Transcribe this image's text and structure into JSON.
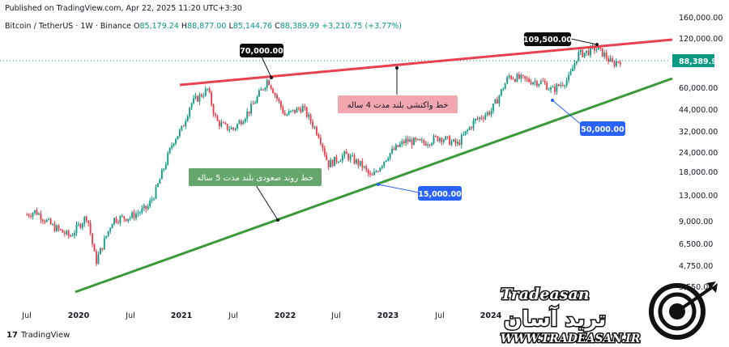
{
  "header": {
    "published": "Published on TradingView.com, Apr 22, 2025 11:20 UTC+3:30"
  },
  "symbol": {
    "name": "Bitcoin / TetherUS · 1W · Binance",
    "o_label": "O",
    "o": "85,179.24",
    "h_label": "H",
    "h": "88,877.00",
    "l_label": "L",
    "l": "85,144.76",
    "c_label": "C",
    "c": "88,389.99",
    "change": "+3,210.75 (+3.77%)"
  },
  "branding": {
    "tradingview": "TradingView"
  },
  "watermark": {
    "latin": "Tradeasan",
    "persian": "ترید آسان",
    "url": "WWW.TRADEASAN.IR"
  },
  "colors": {
    "up": "#089981",
    "down": "#f23645",
    "resistance": "#e8414f",
    "support": "#3a9a3a",
    "callout_dark": "#0b0b0b",
    "callout_blue": "#2962ff"
  },
  "chart_data": {
    "type": "candlestick",
    "symbol": "BTCUSDT",
    "timeframe": "1W",
    "exchange": "Binance",
    "scale": "log",
    "price_axis": [
      "160,000.00",
      "120,000.00",
      "88,389.99",
      "60,000.00",
      "44,000.00",
      "32,000.00",
      "24,000.00",
      "18,000.00",
      "13,000.00",
      "9,000.00",
      "6,500.00",
      "4,750.00",
      "3,550.00"
    ],
    "time_axis": [
      "Jul",
      "2020",
      "Jul",
      "2021",
      "Jul",
      "2022",
      "Jul",
      "2023",
      "Jul",
      "2024"
    ],
    "last_price": "88,389.99",
    "price_points": [
      [
        "2019-07",
        9800
      ],
      [
        "2019-08",
        10300
      ],
      [
        "2019-10",
        8300
      ],
      [
        "2019-12",
        7200
      ],
      [
        "2020-02",
        9700
      ],
      [
        "2020-03",
        5000
      ],
      [
        "2020-05",
        9200
      ],
      [
        "2020-07",
        9500
      ],
      [
        "2020-09",
        10800
      ],
      [
        "2020-10",
        13800
      ],
      [
        "2020-12",
        28000
      ],
      [
        "2021-01",
        33000
      ],
      [
        "2021-02",
        47000
      ],
      [
        "2021-04",
        58000
      ],
      [
        "2021-05",
        37000
      ],
      [
        "2021-06",
        34000
      ],
      [
        "2021-07",
        33000
      ],
      [
        "2021-09",
        44000
      ],
      [
        "2021-11",
        67000
      ],
      [
        "2022-01",
        40000
      ],
      [
        "2022-03",
        45000
      ],
      [
        "2022-05",
        30000
      ],
      [
        "2022-06",
        20000
      ],
      [
        "2022-08",
        23000
      ],
      [
        "2022-10",
        19500
      ],
      [
        "2022-11",
        16500
      ],
      [
        "2023-01",
        23000
      ],
      [
        "2023-03",
        28000
      ],
      [
        "2023-05",
        27000
      ],
      [
        "2023-07",
        29500
      ],
      [
        "2023-09",
        26500
      ],
      [
        "2023-11",
        37000
      ],
      [
        "2024-01",
        43000
      ],
      [
        "2024-03",
        70000
      ],
      [
        "2024-05",
        66000
      ],
      [
        "2024-07",
        64000
      ],
      [
        "2024-08",
        57000
      ],
      [
        "2024-10",
        68000
      ],
      [
        "2024-11",
        95000
      ],
      [
        "2024-12",
        98000
      ],
      [
        "2025-01",
        104000
      ],
      [
        "2025-02",
        96000
      ],
      [
        "2025-03",
        83000
      ],
      [
        "2025-04",
        88390
      ]
    ],
    "trendlines": [
      {
        "name": "resistance",
        "label": "خط واکنشی بلند مدت 4 ساله"
      },
      {
        "name": "support",
        "label": "خط روند صعودی بلند مدت 5 ساله"
      }
    ],
    "price_labels": [
      {
        "text": "70,000.00",
        "style": "dark"
      },
      {
        "text": "109,500.00",
        "style": "dark"
      },
      {
        "text": "50,000.00",
        "style": "blue"
      },
      {
        "text": "15,000.00",
        "style": "blue"
      }
    ]
  }
}
